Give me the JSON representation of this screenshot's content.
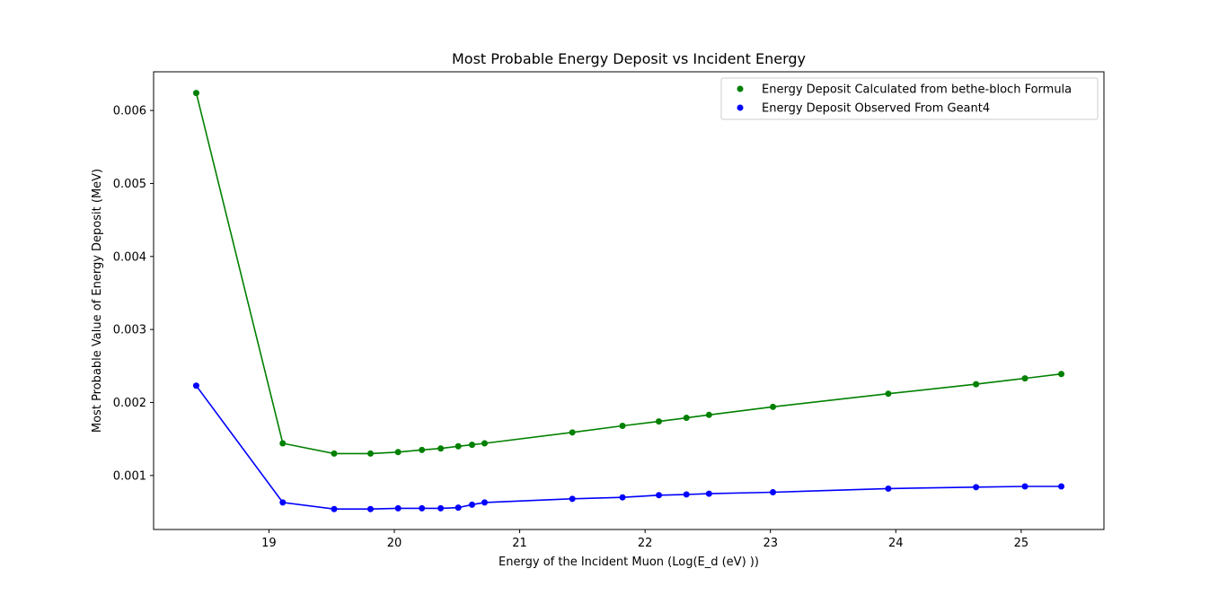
{
  "chart_data": {
    "type": "line",
    "title": "Most Probable Energy Deposit vs Incident Energy",
    "xlabel": "Energy of the Incident Muon (Log(E_d (eV) ))",
    "ylabel": "Most Probable Value of Energy Deposit (MeV)",
    "xlim": [
      18.08,
      25.66
    ],
    "ylim": [
      0.00026,
      0.00653
    ],
    "xticks": [
      19,
      20,
      21,
      22,
      23,
      24,
      25
    ],
    "yticks": [
      0.001,
      0.002,
      0.003,
      0.004,
      0.005,
      0.006
    ],
    "ytick_labels": [
      "0.001",
      "0.002",
      "0.003",
      "0.004",
      "0.005",
      "0.006"
    ],
    "grid": false,
    "legend_position": "top-right",
    "x": [
      18.42,
      19.11,
      19.52,
      19.81,
      20.03,
      20.22,
      20.37,
      20.51,
      20.62,
      20.72,
      21.42,
      21.82,
      22.11,
      22.33,
      22.51,
      23.02,
      23.94,
      24.64,
      25.03,
      25.32
    ],
    "series": [
      {
        "name": "Energy Deposit Calculated from bethe-bloch Formula",
        "color": "#008000",
        "values": [
          0.00624,
          0.00144,
          0.0013,
          0.0013,
          0.00132,
          0.00135,
          0.00137,
          0.0014,
          0.00142,
          0.00144,
          0.00159,
          0.00168,
          0.00174,
          0.00179,
          0.00183,
          0.00194,
          0.00212,
          0.00225,
          0.00233,
          0.00239
        ]
      },
      {
        "name": "Energy Deposit Observed From Geant4",
        "color": "#0000ff",
        "values": [
          0.00223,
          0.00063,
          0.00054,
          0.00054,
          0.00055,
          0.00055,
          0.00055,
          0.00056,
          0.0006,
          0.00063,
          0.00068,
          0.0007,
          0.00073,
          0.00074,
          0.00075,
          0.00077,
          0.00082,
          0.00084,
          0.00085,
          0.00085
        ]
      }
    ]
  }
}
